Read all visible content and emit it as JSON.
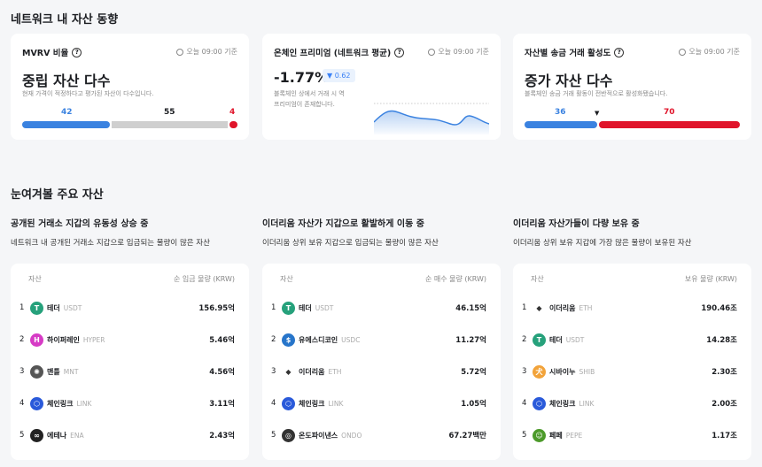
{
  "section1": {
    "title": "네트워크 내 자산 동향"
  },
  "cards": [
    {
      "title": "MVRV 비율",
      "time": "오늘 09:00 기준",
      "headline": "중립 자산 다수",
      "desc": "현재 가격이 적정하다고 평가된 자산이 다수입니다.",
      "bar": {
        "blue": 42,
        "gray": 55,
        "red": 4
      }
    },
    {
      "title": "온체인 프리미엄 (네트워크 평균)",
      "time": "오늘 09:00 기준",
      "headline": "-1.77%",
      "change": "0.62",
      "change_direction": "down",
      "desc_line1": "블록체인 상에서 거래 시 역",
      "desc_line2": "프리미엄이 존재합니다."
    },
    {
      "title": "자산별 송금 거래 활성도",
      "time": "오늘 09:00 기준",
      "headline": "증가 자산 다수",
      "desc": "블록체인 송금 거래 활동이 전반적으로 활성화됐습니다.",
      "bar": {
        "blue": 36,
        "red": 70
      }
    }
  ],
  "colors": {
    "blue": "#3a82e0",
    "gray": "#cfcfcf",
    "red": "#e0142a"
  },
  "section2": {
    "title": "눈여겨볼 주요 자산"
  },
  "columns": [
    {
      "title": "공개된 거래소 지갑의 유동성 상승 중",
      "subtitle": "네트워크 내 공개된 거래소 지갑으로 입금되는 물량이 많은 자산",
      "header_asset": "자산",
      "header_value": "순 입금 물량 (KRW)",
      "rows": [
        {
          "rank": "1",
          "name": "테더",
          "symbol": "USDT",
          "value": "156.95억",
          "icon": "tether-icon",
          "color": "#26a17b",
          "glyph": "T"
        },
        {
          "rank": "2",
          "name": "하이퍼레인",
          "symbol": "HYPER",
          "value": "5.46억",
          "icon": "hyperlane-icon",
          "color": "#d63bc5",
          "glyph": "H"
        },
        {
          "rank": "3",
          "name": "맨틀",
          "symbol": "MNT",
          "value": "4.56억",
          "icon": "mantle-icon",
          "color": "#555",
          "glyph": "✺"
        },
        {
          "rank": "4",
          "name": "체인링크",
          "symbol": "LINK",
          "value": "3.11억",
          "icon": "chainlink-icon",
          "color": "#2a5ada",
          "glyph": "⬡"
        },
        {
          "rank": "5",
          "name": "에테나",
          "symbol": "ENA",
          "value": "2.43억",
          "icon": "ethena-icon",
          "color": "#222",
          "glyph": "∞"
        }
      ]
    },
    {
      "title": "이더리움 자산가 지갑으로 활발하게 이동 중",
      "subtitle": "이더리움 상위 보유 지갑으로 입금되는 물량이 많은 자산",
      "header_asset": "자산",
      "header_value": "순 매수 물량 (KRW)",
      "rows": [
        {
          "rank": "1",
          "name": "테더",
          "symbol": "USDT",
          "value": "46.15억",
          "icon": "tether-icon",
          "color": "#26a17b",
          "glyph": "T"
        },
        {
          "rank": "2",
          "name": "유에스디코인",
          "symbol": "USDC",
          "value": "11.27억",
          "icon": "usdc-icon",
          "color": "#2775ca",
          "glyph": "$"
        },
        {
          "rank": "3",
          "name": "이더리움",
          "symbol": "ETH",
          "value": "5.72억",
          "icon": "ethereum-icon",
          "color": "#fff",
          "glyph": "◆"
        },
        {
          "rank": "4",
          "name": "체인링크",
          "symbol": "LINK",
          "value": "1.05억",
          "icon": "chainlink-icon",
          "color": "#2a5ada",
          "glyph": "⬡"
        },
        {
          "rank": "5",
          "name": "온도파이낸스",
          "symbol": "ONDO",
          "value": "67.27백만",
          "icon": "ondo-icon",
          "color": "#333",
          "glyph": "◎"
        }
      ]
    },
    {
      "title": "이더리움 자산가들이 다량 보유 중",
      "subtitle": "이더리움 상위 보유 지갑에 가장 많은 물량이 보유된 자산",
      "header_asset": "자산",
      "header_value": "보유 물량 (KRW)",
      "rows": [
        {
          "rank": "1",
          "name": "이더리움",
          "symbol": "ETH",
          "value": "190.46조",
          "icon": "ethereum-icon",
          "color": "#fff",
          "glyph": "◆"
        },
        {
          "rank": "2",
          "name": "테더",
          "symbol": "USDT",
          "value": "14.28조",
          "icon": "tether-icon",
          "color": "#26a17b",
          "glyph": "T"
        },
        {
          "rank": "3",
          "name": "시바이누",
          "symbol": "SHIB",
          "value": "2.30조",
          "icon": "shiba-inu-icon",
          "color": "#f2a33a",
          "glyph": "犬"
        },
        {
          "rank": "4",
          "name": "체인링크",
          "symbol": "LINK",
          "value": "2.00조",
          "icon": "chainlink-icon",
          "color": "#2a5ada",
          "glyph": "⬡"
        },
        {
          "rank": "5",
          "name": "페페",
          "symbol": "PEPE",
          "value": "1.17조",
          "icon": "pepe-icon",
          "color": "#4c9a2a",
          "glyph": "☺"
        }
      ]
    }
  ]
}
